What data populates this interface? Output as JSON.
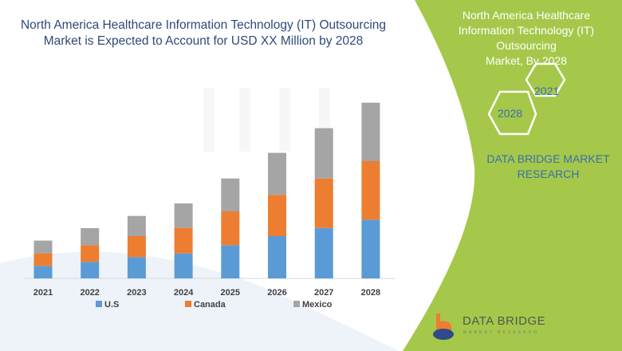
{
  "title": "North America Healthcare Information Technology (IT) Outsourcing Market is Expected to Account for USD XX Million by 2028",
  "side_panel": {
    "title_lines": [
      "North America Healthcare",
      "Information Technology (IT)",
      "Outsourcing",
      "Market, By 2028"
    ],
    "hex_years": [
      "2021",
      "2028"
    ],
    "company": "DATA BRIDGE MARKET RESEARCH",
    "logo_text": "DATA BRIDGE",
    "logo_sub": "MARKET RESEARCH",
    "panel_color": "#a5c84a"
  },
  "chart_data": {
    "type": "bar",
    "stacked": true,
    "title": "North America Healthcare Information Technology (IT) Outsourcing Market is Expected to Account for USD XX Million by 2028",
    "categories": [
      "2021",
      "2022",
      "2023",
      "2024",
      "2025",
      "2026",
      "2027",
      "2028"
    ],
    "series": [
      {
        "name": "U.S",
        "color": "#5b9bd5",
        "values": [
          15.7,
          20.7,
          26.7,
          31.3,
          41.7,
          53,
          63.3,
          73.7
        ]
      },
      {
        "name": "Canada",
        "color": "#ed7d31",
        "values": [
          15.7,
          21,
          26.3,
          32,
          42.3,
          51.7,
          62,
          73.3
        ]
      },
      {
        "name": "Mexico",
        "color": "#a5a5a5",
        "values": [
          16,
          21.3,
          25.3,
          30.7,
          41.3,
          52.7,
          63,
          73.3
        ]
      }
    ],
    "value_axis_shown": false,
    "grid": false,
    "legend_position": "bottom"
  }
}
